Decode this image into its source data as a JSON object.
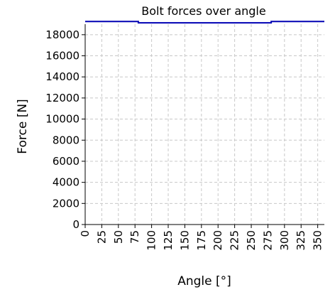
{
  "chart_data": {
    "type": "line",
    "title": "Bolt forces over angle",
    "xlabel": "Angle [°]",
    "ylabel": "Force [N]",
    "xlim": [
      0,
      360
    ],
    "ylim": [
      0,
      19000
    ],
    "x_ticks": [
      0,
      25,
      50,
      75,
      100,
      125,
      150,
      175,
      200,
      225,
      250,
      275,
      300,
      325,
      350
    ],
    "y_ticks": [
      0,
      2000,
      4000,
      6000,
      8000,
      10000,
      12000,
      14000,
      16000,
      18000
    ],
    "grid": true,
    "line_color": "#0000b4",
    "series": [
      {
        "x": [
          0,
          80,
          80,
          280,
          280,
          360
        ],
        "values": [
          19250,
          19250,
          19130,
          19130,
          19250,
          19250
        ]
      }
    ]
  }
}
